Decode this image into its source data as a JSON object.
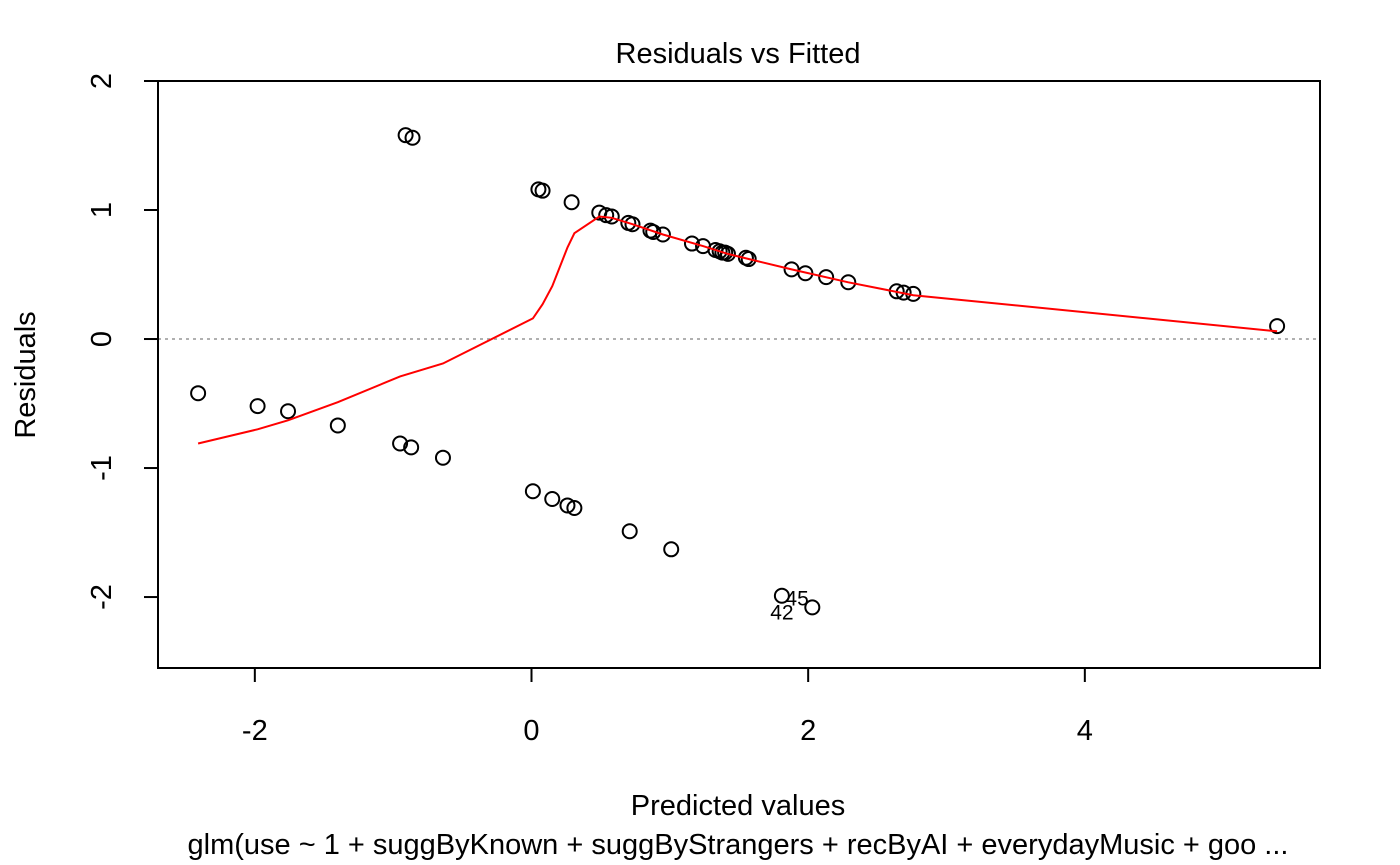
{
  "chart_data": {
    "type": "scatter",
    "title": "Residuals vs Fitted",
    "xlabel": "Predicted values",
    "ylabel": "Residuals",
    "subtitle": "glm(use ~ 1 + suggByKnown + suggByStrangers + recByAI + everydayMusic + goo ...",
    "xlim": [
      -2.7,
      5.7
    ],
    "ylim": [
      -2.55,
      2.0
    ],
    "x_ticks": [
      -2,
      0,
      2,
      4
    ],
    "y_ticks": [
      -2,
      -1,
      0,
      1,
      2
    ],
    "x_tick_labels": [
      "-2",
      "0",
      "2",
      "4"
    ],
    "y_tick_labels": [
      "-2",
      "-1",
      "0",
      "1",
      "2"
    ],
    "grid": false,
    "reference_line": {
      "y": 0,
      "style": "dotted",
      "color": "#b0b0b0"
    },
    "colors": {
      "points": "#000000",
      "smooth": "#ff0000",
      "frame": "#000000"
    },
    "points": [
      {
        "x": -2.41,
        "y": -0.42
      },
      {
        "x": -1.98,
        "y": -0.52
      },
      {
        "x": -1.76,
        "y": -0.56
      },
      {
        "x": -1.4,
        "y": -0.67
      },
      {
        "x": -0.95,
        "y": -0.81
      },
      {
        "x": -0.87,
        "y": -0.84
      },
      {
        "x": -0.64,
        "y": -0.92
      },
      {
        "x": -0.91,
        "y": 1.58
      },
      {
        "x": -0.86,
        "y": 1.56
      },
      {
        "x": 0.01,
        "y": -1.18
      },
      {
        "x": 0.15,
        "y": -1.24
      },
      {
        "x": 0.26,
        "y": -1.29
      },
      {
        "x": 0.31,
        "y": -1.31
      },
      {
        "x": 0.71,
        "y": -1.49
      },
      {
        "x": 1.01,
        "y": -1.63
      },
      {
        "x": 1.81,
        "y": -1.99
      },
      {
        "x": 2.03,
        "y": -2.08
      },
      {
        "x": 0.05,
        "y": 1.16
      },
      {
        "x": 0.08,
        "y": 1.15
      },
      {
        "x": 0.29,
        "y": 1.06
      },
      {
        "x": 0.49,
        "y": 0.98
      },
      {
        "x": 0.54,
        "y": 0.96
      },
      {
        "x": 0.58,
        "y": 0.95
      },
      {
        "x": 0.7,
        "y": 0.9
      },
      {
        "x": 0.73,
        "y": 0.89
      },
      {
        "x": 0.86,
        "y": 0.84
      },
      {
        "x": 0.88,
        "y": 0.83
      },
      {
        "x": 0.95,
        "y": 0.81
      },
      {
        "x": 1.16,
        "y": 0.74
      },
      {
        "x": 1.24,
        "y": 0.72
      },
      {
        "x": 1.33,
        "y": 0.69
      },
      {
        "x": 1.36,
        "y": 0.68
      },
      {
        "x": 1.38,
        "y": 0.67
      },
      {
        "x": 1.4,
        "y": 0.67
      },
      {
        "x": 1.42,
        "y": 0.66
      },
      {
        "x": 1.55,
        "y": 0.63
      },
      {
        "x": 1.57,
        "y": 0.62
      },
      {
        "x": 1.88,
        "y": 0.54
      },
      {
        "x": 1.98,
        "y": 0.51
      },
      {
        "x": 2.13,
        "y": 0.48
      },
      {
        "x": 2.29,
        "y": 0.44
      },
      {
        "x": 2.64,
        "y": 0.37
      },
      {
        "x": 2.69,
        "y": 0.36
      },
      {
        "x": 2.76,
        "y": 0.35
      },
      {
        "x": 5.39,
        "y": 0.1
      }
    ],
    "smooth_line": [
      {
        "x": -2.41,
        "y": -0.81
      },
      {
        "x": -1.98,
        "y": -0.7
      },
      {
        "x": -1.76,
        "y": -0.63
      },
      {
        "x": -1.4,
        "y": -0.49
      },
      {
        "x": -0.95,
        "y": -0.29
      },
      {
        "x": -0.64,
        "y": -0.19
      },
      {
        "x": 0.01,
        "y": 0.16
      },
      {
        "x": 0.08,
        "y": 0.27
      },
      {
        "x": 0.15,
        "y": 0.41
      },
      {
        "x": 0.26,
        "y": 0.71
      },
      {
        "x": 0.31,
        "y": 0.82
      },
      {
        "x": 0.49,
        "y": 0.95
      },
      {
        "x": 0.58,
        "y": 0.94
      },
      {
        "x": 0.73,
        "y": 0.89
      },
      {
        "x": 0.95,
        "y": 0.81
      },
      {
        "x": 1.24,
        "y": 0.72
      },
      {
        "x": 1.42,
        "y": 0.66
      },
      {
        "x": 1.57,
        "y": 0.62
      },
      {
        "x": 1.88,
        "y": 0.54
      },
      {
        "x": 2.29,
        "y": 0.44
      },
      {
        "x": 2.76,
        "y": 0.34
      },
      {
        "x": 5.39,
        "y": 0.06
      }
    ],
    "annotations": [
      {
        "text": "45",
        "x": 1.92,
        "y": -2.01
      },
      {
        "text": "42",
        "x": 1.81,
        "y": -2.12
      }
    ]
  }
}
